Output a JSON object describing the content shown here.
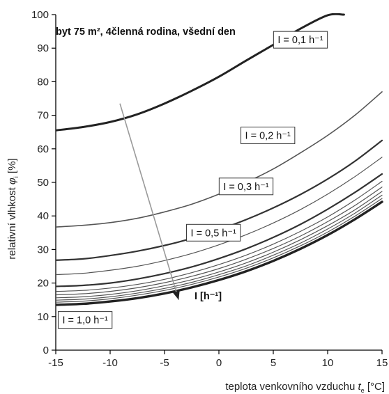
{
  "chart_data": {
    "type": "line",
    "subtitle": "byt 75 m², 4členná rodina, všední den",
    "xlabel": "teplota venkovního vzduchu",
    "xlabel_symbol": "t",
    "xlabel_subscript": "e",
    "xlabel_unit": "[°C]",
    "ylabel": "relativní vlhkost",
    "ylabel_symbol": "φ",
    "ylabel_subscript": "i",
    "ylabel_unit": "[%]",
    "xlim": [
      -15,
      15
    ],
    "ylim": [
      0,
      100
    ],
    "xticks": [
      "-15",
      "-10",
      "-5",
      "0",
      "5",
      "10",
      "15"
    ],
    "yticks": [
      "0",
      "10",
      "20",
      "30",
      "40",
      "50",
      "60",
      "70",
      "80",
      "90",
      "100"
    ],
    "grid": false,
    "legend": "none",
    "arrow_label": "I [h⁻¹]",
    "series": [
      {
        "name": "I = 0,1 h⁻¹",
        "label_x": 7.5,
        "label_y": 92.5,
        "x": [
          -15,
          -12.5,
          -10,
          -7.5,
          -5,
          -2.5,
          0,
          2.5,
          5,
          7.5,
          10,
          11.5
        ],
        "y": [
          65.5,
          66.5,
          68.0,
          70.3,
          73.5,
          77.3,
          81.5,
          86.3,
          91.0,
          95.8,
          99.8,
          100
        ]
      },
      {
        "name": "I = 0,2 h⁻¹",
        "label_x": 4.5,
        "label_y": 64.0,
        "x": [
          -15,
          -12.5,
          -10,
          -7.5,
          -5,
          -2.5,
          0,
          2.5,
          5,
          7.5,
          10,
          12.5,
          15
        ],
        "y": [
          36.7,
          37.2,
          38.0,
          39.3,
          41.2,
          43.5,
          46.5,
          50.0,
          54.0,
          58.8,
          64.0,
          70.0,
          77.0
        ]
      },
      {
        "name": "I = 0,3 h⁻¹",
        "label_x": 2.5,
        "label_y": 48.8,
        "x": [
          -15,
          -12.5,
          -10,
          -7.5,
          -5,
          -2.5,
          0,
          2.5,
          5,
          7.5,
          10,
          12.5,
          15
        ],
        "y": [
          26.8,
          27.2,
          28.2,
          29.5,
          31.2,
          33.3,
          35.9,
          38.9,
          42.4,
          46.4,
          51.0,
          56.3,
          62.5
        ]
      },
      {
        "name": "I = 0,5 h⁻¹",
        "label_x": -0.5,
        "label_y": 35.0,
        "x": [
          -15,
          -12.5,
          -10,
          -7.5,
          -5,
          -2.5,
          0,
          2.5,
          5,
          7.5,
          10,
          12.5,
          15
        ],
        "y": [
          19.0,
          19.3,
          20.0,
          21.2,
          22.8,
          24.8,
          27.3,
          30.2,
          33.6,
          37.5,
          42.0,
          47.0,
          52.5
        ]
      },
      {
        "name": "",
        "x": [
          -15,
          -12.5,
          -10,
          -7.5,
          -5,
          -2.5,
          0,
          2.5,
          5,
          7.5,
          10,
          12.5,
          15
        ],
        "y": [
          22.5,
          22.9,
          23.8,
          25.0,
          26.7,
          28.8,
          31.4,
          34.4,
          37.9,
          41.9,
          46.5,
          51.7,
          57.5
        ]
      },
      {
        "name": "",
        "x": [
          -15,
          -12.5,
          -10,
          -7.5,
          -5,
          -2.5,
          0,
          2.5,
          5,
          7.5,
          10,
          12.5,
          15
        ],
        "y": [
          17.5,
          17.8,
          18.5,
          19.6,
          21.1,
          23.1,
          25.5,
          28.3,
          31.6,
          35.4,
          39.7,
          44.7,
          50.3
        ]
      },
      {
        "name": "",
        "x": [
          -15,
          -12.5,
          -10,
          -7.5,
          -5,
          -2.5,
          0,
          2.5,
          5,
          7.5,
          10,
          12.5,
          15
        ],
        "y": [
          16.5,
          16.8,
          17.5,
          18.6,
          20.1,
          22.0,
          24.3,
          27.1,
          30.3,
          34.0,
          38.3,
          43.1,
          48.6
        ]
      },
      {
        "name": "",
        "x": [
          -15,
          -12.5,
          -10,
          -7.5,
          -5,
          -2.5,
          0,
          2.5,
          5,
          7.5,
          10,
          12.5,
          15
        ],
        "y": [
          15.6,
          15.9,
          16.6,
          17.7,
          19.2,
          21.0,
          23.3,
          26.0,
          29.2,
          32.9,
          37.1,
          41.8,
          47.3
        ]
      },
      {
        "name": "",
        "x": [
          -15,
          -12.5,
          -10,
          -7.5,
          -5,
          -2.5,
          0,
          2.5,
          5,
          7.5,
          10,
          12.5,
          15
        ],
        "y": [
          14.9,
          15.2,
          15.9,
          17.0,
          18.4,
          20.2,
          22.5,
          25.1,
          28.3,
          31.9,
          36.1,
          40.8,
          46.2
        ]
      },
      {
        "name": "",
        "x": [
          -15,
          -12.5,
          -10,
          -7.5,
          -5,
          -2.5,
          0,
          2.5,
          5,
          7.5,
          10,
          12.5,
          15
        ],
        "y": [
          14.3,
          14.6,
          15.3,
          16.4,
          17.8,
          19.6,
          21.8,
          24.4,
          27.5,
          31.1,
          35.2,
          39.9,
          45.2
        ]
      },
      {
        "name": "I = 1,0 h⁻¹",
        "label_x": -12.3,
        "label_y": 9.0,
        "x": [
          -15,
          -12.5,
          -10,
          -7.5,
          -5,
          -2.5,
          0,
          2.5,
          5,
          7.5,
          10,
          12.5,
          15
        ],
        "y": [
          13.5,
          13.8,
          14.5,
          15.5,
          16.9,
          18.7,
          20.9,
          23.5,
          26.6,
          30.2,
          34.3,
          39.0,
          44.2
        ]
      }
    ],
    "arrow": {
      "x1": -9.1,
      "y1": 73.5,
      "x2": -3.7,
      "y2": 15.0
    }
  }
}
